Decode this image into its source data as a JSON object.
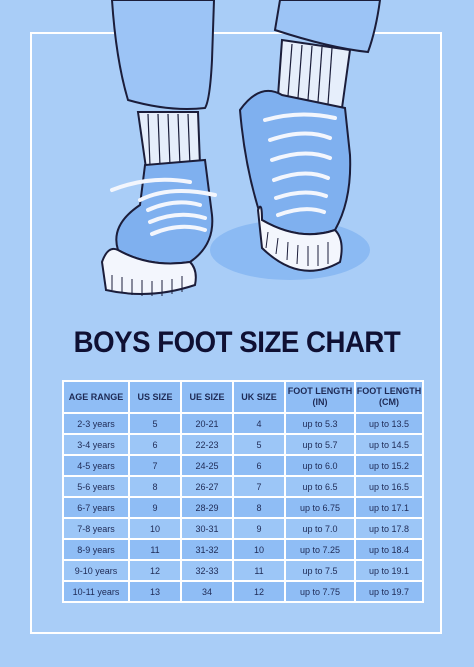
{
  "title": "BOYS FOOT SIZE CHART",
  "colors": {
    "background": "#a9cdf7",
    "table_fill": "#8fbdf5",
    "shoe_blue": "#7fb0ef",
    "ink": "#0f1033"
  },
  "table": {
    "headers": [
      "AGE RANGE",
      "US SIZE",
      "UE SIZE",
      "UK SIZE",
      "FOOT LENGTH (IN)",
      "FOOT LENGTH (CM)"
    ],
    "rows": [
      [
        "2-3 years",
        "5",
        "20-21",
        "4",
        "up to 5.3",
        "up to 13.5"
      ],
      [
        "3-4 years",
        "6",
        "22-23",
        "5",
        "up to 5.7",
        "up to 14.5"
      ],
      [
        "4-5 years",
        "7",
        "24-25",
        "6",
        "up to 6.0",
        "up to 15.2"
      ],
      [
        "5-6 years",
        "8",
        "26-27",
        "7",
        "up to 6.5",
        "up to 16.5"
      ],
      [
        "6-7 years",
        "9",
        "28-29",
        "8",
        "up to 6.75",
        "up to 17.1"
      ],
      [
        "7-8 years",
        "10",
        "30-31",
        "9",
        "up to 7.0",
        "up to 17.8"
      ],
      [
        "8-9 years",
        "11",
        "31-32",
        "10",
        "up to 7.25",
        "up to 18.4"
      ],
      [
        "9-10 years",
        "12",
        "32-33",
        "11",
        "up to 7.5",
        "up to 19.1"
      ],
      [
        "10-11 years",
        "13",
        "34",
        "12",
        "up to 7.75",
        "up to 19.7"
      ]
    ]
  }
}
